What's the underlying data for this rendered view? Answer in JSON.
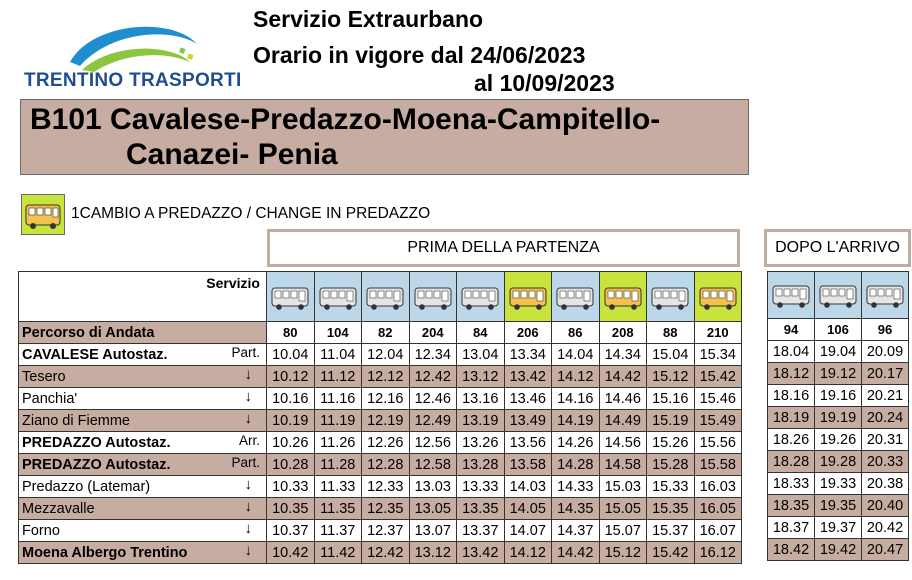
{
  "company": {
    "name": "TRENTINO TRASPORTI",
    "logo_icon": "trentino-trasporti-logo"
  },
  "header": {
    "service": "Servizio Extraurbano",
    "validity_line1": "Orario in vigore dal 24/06/2023",
    "validity_line2": "al 10/09/2023"
  },
  "route": {
    "line1": "B101 Cavalese-Predazzo-Moena-Campitello-",
    "line2": "Canazei- Penia"
  },
  "legend": {
    "icon": "bus-yellow-icon",
    "text": "1CAMBIO A PREDAZZO / CHANGE IN PREDAZZO"
  },
  "captions": {
    "before": "PRIMA DELLA PARTENZA",
    "after": "DOPO L'ARRIVO"
  },
  "table": {
    "servizio_label": "Servizio",
    "percorso_label": "Percorso di Andata",
    "colors": {
      "shaded_row": "#c6aca1",
      "bus_normal_bg": "#bcd8e8",
      "bus_change_bg": "#c8e33d"
    },
    "before_runs": [
      {
        "num": "80",
        "change": false
      },
      {
        "num": "104",
        "change": false
      },
      {
        "num": "82",
        "change": false
      },
      {
        "num": "204",
        "change": false
      },
      {
        "num": "84",
        "change": false
      },
      {
        "num": "206",
        "change": true
      },
      {
        "num": "86",
        "change": false
      },
      {
        "num": "208",
        "change": true
      },
      {
        "num": "88",
        "change": false
      },
      {
        "num": "210",
        "change": true
      }
    ],
    "after_runs": [
      {
        "num": "94",
        "change": false
      },
      {
        "num": "106",
        "change": false
      },
      {
        "num": "96",
        "change": false
      }
    ],
    "stops": [
      {
        "name": "CAVALESE  Autostaz.",
        "bold": true,
        "mark": "Part.",
        "shaded": false,
        "before": [
          "10.04",
          "11.04",
          "12.04",
          "12.34",
          "13.04",
          "13.34",
          "14.04",
          "14.34",
          "15.04",
          "15.34"
        ],
        "after": [
          "18.04",
          "19.04",
          "20.09"
        ]
      },
      {
        "name": "Tesero",
        "bold": false,
        "mark": "↓",
        "shaded": true,
        "before": [
          "10.12",
          "11.12",
          "12.12",
          "12.42",
          "13.12",
          "13.42",
          "14.12",
          "14.42",
          "15.12",
          "15.42"
        ],
        "after": [
          "18.12",
          "19.12",
          "20.17"
        ]
      },
      {
        "name": "Panchia'",
        "bold": false,
        "mark": "↓",
        "shaded": false,
        "before": [
          "10.16",
          "11.16",
          "12.16",
          "12.46",
          "13.16",
          "13.46",
          "14.16",
          "14.46",
          "15.16",
          "15.46"
        ],
        "after": [
          "18.16",
          "19.16",
          "20.21"
        ]
      },
      {
        "name": "Ziano di Fiemme",
        "bold": false,
        "mark": "↓",
        "shaded": true,
        "before": [
          "10.19",
          "11.19",
          "12.19",
          "12.49",
          "13.19",
          "13.49",
          "14.19",
          "14.49",
          "15.19",
          "15.49"
        ],
        "after": [
          "18.19",
          "19.19",
          "20.24"
        ]
      },
      {
        "name": "PREDAZZO Autostaz.",
        "bold": true,
        "mark": "Arr.",
        "shaded": false,
        "before": [
          "10.26",
          "11.26",
          "12.26",
          "12.56",
          "13.26",
          "13.56",
          "14.26",
          "14.56",
          "15.26",
          "15.56"
        ],
        "after": [
          "18.26",
          "19.26",
          "20.31"
        ]
      },
      {
        "name": "PREDAZZO Autostaz.",
        "bold": true,
        "mark": "Part.",
        "shaded": true,
        "before": [
          "10.28",
          "11.28",
          "12.28",
          "12.58",
          "13.28",
          "13.58",
          "14.28",
          "14.58",
          "15.28",
          "15.58"
        ],
        "after": [
          "18.28",
          "19.28",
          "20.33"
        ]
      },
      {
        "name": "Predazzo (Latemar)",
        "bold": false,
        "mark": "↓",
        "shaded": false,
        "before": [
          "10.33",
          "11.33",
          "12.33",
          "13.03",
          "13.33",
          "14.03",
          "14.33",
          "15.03",
          "15.33",
          "16.03"
        ],
        "after": [
          "18.33",
          "19.33",
          "20.38"
        ]
      },
      {
        "name": "Mezzavalle",
        "bold": false,
        "mark": "↓",
        "shaded": true,
        "before": [
          "10.35",
          "11.35",
          "12.35",
          "13.05",
          "13.35",
          "14.05",
          "14.35",
          "15.05",
          "15.35",
          "16.05"
        ],
        "after": [
          "18.35",
          "19.35",
          "20.40"
        ]
      },
      {
        "name": "Forno",
        "bold": false,
        "mark": "↓",
        "shaded": false,
        "before": [
          "10.37",
          "11.37",
          "12.37",
          "13.07",
          "13.37",
          "14.07",
          "14.37",
          "15.07",
          "15.37",
          "16.07"
        ],
        "after": [
          "18.37",
          "19.37",
          "20.42"
        ]
      },
      {
        "name": "Moena Albergo Trentino",
        "bold": true,
        "mark": "↓",
        "shaded": true,
        "before": [
          "10.42",
          "11.42",
          "12.42",
          "13.12",
          "13.42",
          "14.12",
          "14.42",
          "15.12",
          "15.42",
          "16.12"
        ],
        "after": [
          "18.42",
          "19.42",
          "20.47"
        ]
      }
    ]
  }
}
